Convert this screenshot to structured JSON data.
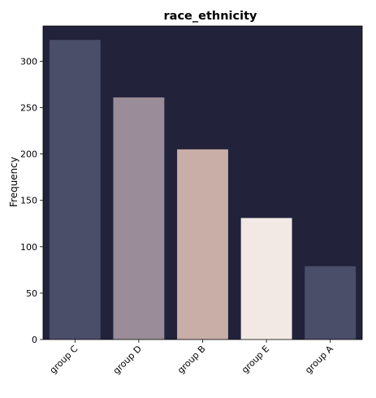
{
  "chart_data": {
    "type": "bar",
    "title": "race_ethnicity",
    "xlabel": "",
    "ylabel": "Frequency",
    "categories": [
      "group C",
      "group D",
      "group B",
      "group E",
      "group A"
    ],
    "values": [
      323,
      261,
      205,
      131,
      79
    ],
    "ylim": [
      0,
      338
    ],
    "yticks": [
      0,
      50,
      100,
      150,
      200,
      250,
      300
    ],
    "grid": false,
    "legend": "none",
    "colors": {
      "plot_background": "#22223b",
      "bars": [
        "#4a4e69",
        "#9a8c98",
        "#c9ada7",
        "#f2e9e4",
        "#4a4e69"
      ]
    }
  }
}
